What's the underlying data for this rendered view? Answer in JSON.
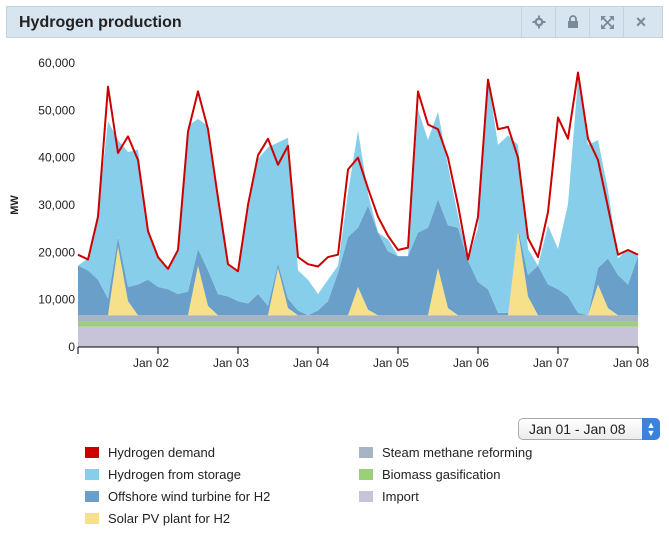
{
  "header": {
    "title": "Hydrogen production",
    "icons": [
      "gears-icon",
      "lock-icon",
      "expand-icon",
      "close-icon"
    ],
    "close_glyph": "×"
  },
  "range_select": {
    "value": "Jan 01 - Jan 08"
  },
  "colors": {
    "Hydrogen demand": "#cc0000",
    "Hydrogen from storage": "#87ceeb",
    "Offshore wind turbine for H2": "#6a9fc9",
    "Solar PV plant for H2": "#f7e08a",
    "Steam methane reforming": "#a7b4c4",
    "Biomass gasification": "#9ccf7a",
    "Import": "#c8c3d9"
  },
  "legend": [
    {
      "label": "Hydrogen demand"
    },
    {
      "label": "Steam methane reforming"
    },
    {
      "label": "Hydrogen from storage"
    },
    {
      "label": "Biomass gasification"
    },
    {
      "label": "Offshore wind turbine for H2"
    },
    {
      "label": "Import"
    },
    {
      "label": "Solar PV plant for H2"
    }
  ],
  "chart_data": {
    "type": "area",
    "ylabel": "MW",
    "ylim": [
      0,
      60000
    ],
    "y_ticks": [
      0,
      10000,
      20000,
      30000,
      40000,
      50000,
      60000
    ],
    "y_tick_labels": [
      "0",
      "10,000",
      "20,000",
      "30,000",
      "40,000",
      "50,000",
      "60,000"
    ],
    "x_range_days": [
      0,
      7
    ],
    "x_ticks": [
      1,
      2,
      3,
      4,
      5,
      6,
      7
    ],
    "x_tick_labels": [
      "Jan 02",
      "Jan 03",
      "Jan 04",
      "Jan 05",
      "Jan 06",
      "Jan 07",
      "Jan 08"
    ],
    "grid": false,
    "legend_position": "bottom",
    "hours": [
      0,
      3,
      6,
      9,
      12,
      15,
      18,
      21,
      24,
      27,
      30,
      33,
      36,
      39,
      42,
      45,
      48,
      51,
      54,
      57,
      60,
      63,
      66,
      69,
      72,
      75,
      78,
      81,
      84,
      87,
      90,
      93,
      96,
      99,
      102,
      105,
      108,
      111,
      114,
      117,
      120,
      123,
      126,
      129,
      132,
      135,
      138,
      141,
      144,
      147,
      150,
      153,
      156,
      159,
      162,
      165,
      168
    ],
    "series": [
      {
        "name": "Import",
        "stack": true,
        "values": [
          4300,
          4300,
          4300,
          4300,
          4300,
          4300,
          4300,
          4300,
          4300,
          4300,
          4300,
          4300,
          4300,
          4300,
          4300,
          4300,
          4300,
          4300,
          4300,
          4300,
          4300,
          4300,
          4300,
          4300,
          4300,
          4300,
          4300,
          4300,
          4300,
          4300,
          4300,
          4300,
          4300,
          4300,
          4300,
          4300,
          4300,
          4300,
          4300,
          4300,
          4300,
          4300,
          4300,
          4300,
          4300,
          4300,
          4300,
          4300,
          4300,
          4300,
          4300,
          4300,
          4300,
          4300,
          4300,
          4300,
          4300
        ]
      },
      {
        "name": "Biomass gasification",
        "stack": true,
        "values": [
          1000,
          1000,
          1000,
          1000,
          1000,
          1000,
          1000,
          1000,
          1000,
          1000,
          1000,
          1000,
          1000,
          1000,
          1000,
          1000,
          1000,
          1000,
          1000,
          1000,
          1000,
          1000,
          1000,
          1000,
          1000,
          1000,
          1000,
          1000,
          1000,
          1000,
          1000,
          1000,
          1000,
          1000,
          1000,
          1000,
          1000,
          1000,
          1000,
          1000,
          1000,
          1000,
          1000,
          1000,
          1000,
          1000,
          1000,
          1000,
          1000,
          1000,
          1000,
          1000,
          1000,
          1000,
          1000,
          1000,
          1000
        ]
      },
      {
        "name": "Steam methane reforming",
        "stack": true,
        "values": [
          1400,
          1400,
          1400,
          1400,
          1400,
          1400,
          1400,
          1400,
          1400,
          1400,
          1400,
          1400,
          1400,
          1400,
          1400,
          1400,
          1400,
          1400,
          1400,
          1400,
          1400,
          1400,
          1400,
          1400,
          1400,
          1400,
          1400,
          1400,
          1400,
          1400,
          1400,
          1400,
          1400,
          1400,
          1400,
          1400,
          1400,
          1400,
          1400,
          1400,
          1400,
          1400,
          1400,
          1400,
          1400,
          1400,
          1400,
          1400,
          1400,
          1400,
          1400,
          1400,
          1400,
          1400,
          1400,
          1400,
          1400
        ]
      },
      {
        "name": "Solar PV plant for H2",
        "stack": true,
        "values": [
          0,
          0,
          0,
          0,
          14500,
          3000,
          0,
          0,
          0,
          0,
          0,
          0,
          10500,
          2000,
          0,
          0,
          0,
          0,
          0,
          0,
          10000,
          1500,
          0,
          0,
          0,
          0,
          0,
          0,
          6000,
          1200,
          0,
          0,
          0,
          0,
          0,
          0,
          10000,
          1500,
          0,
          0,
          0,
          0,
          0,
          0,
          18000,
          4000,
          0,
          0,
          0,
          0,
          0,
          0,
          6500,
          1500,
          0,
          0,
          0
        ]
      },
      {
        "name": "Offshore wind turbine for H2",
        "stack": true,
        "values": [
          10500,
          9500,
          7500,
          3500,
          2000,
          3000,
          6500,
          7500,
          6000,
          5500,
          4500,
          5000,
          3500,
          7500,
          4500,
          4000,
          3000,
          2500,
          4500,
          2000,
          1000,
          2000,
          1000,
          0,
          1000,
          3000,
          9000,
          16500,
          12500,
          22000,
          17500,
          13500,
          12500,
          12500,
          17500,
          18500,
          14500,
          17500,
          18500,
          11500,
          7000,
          5500,
          500,
          500,
          500,
          4500,
          10500,
          6500,
          5500,
          4000,
          500,
          0,
          3500,
          10500,
          8500,
          6500,
          12500
        ]
      },
      {
        "name": "Hydrogen from storage",
        "stack": true,
        "values": [
          0,
          2500,
          14500,
          37500,
          20500,
          28500,
          28500,
          10500,
          6500,
          4500,
          9500,
          35000,
          27500,
          30500,
          19500,
          6500,
          6000,
          19500,
          28500,
          33500,
          25500,
          34000,
          8500,
          7500,
          3500,
          4500,
          1500,
          9500,
          20500,
          2500,
          0,
          2500,
          0,
          0,
          26000,
          18500,
          18500,
          12500,
          2500,
          0,
          11500,
          44500,
          35500,
          37500,
          17500,
          5500,
          0,
          12500,
          8500,
          19500,
          49500,
          36000,
          27000,
          14500,
          3500,
          7500,
          0
        ]
      },
      {
        "name": "Hydrogen demand",
        "stack": false,
        "values": [
          19500,
          18500,
          27500,
          55000,
          41000,
          44500,
          39500,
          24500,
          19000,
          16500,
          20500,
          45500,
          54000,
          46000,
          31500,
          17500,
          16000,
          30000,
          40500,
          44000,
          38500,
          42500,
          19000,
          17500,
          17000,
          19000,
          19500,
          37500,
          40000,
          33500,
          27500,
          23500,
          20500,
          21000,
          54000,
          47000,
          46000,
          40000,
          30000,
          18500,
          27500,
          56500,
          46000,
          46500,
          40000,
          23000,
          19000,
          28500,
          48500,
          44000,
          58000,
          44000,
          39500,
          29500,
          19500,
          20500,
          19500
        ]
      }
    ]
  }
}
